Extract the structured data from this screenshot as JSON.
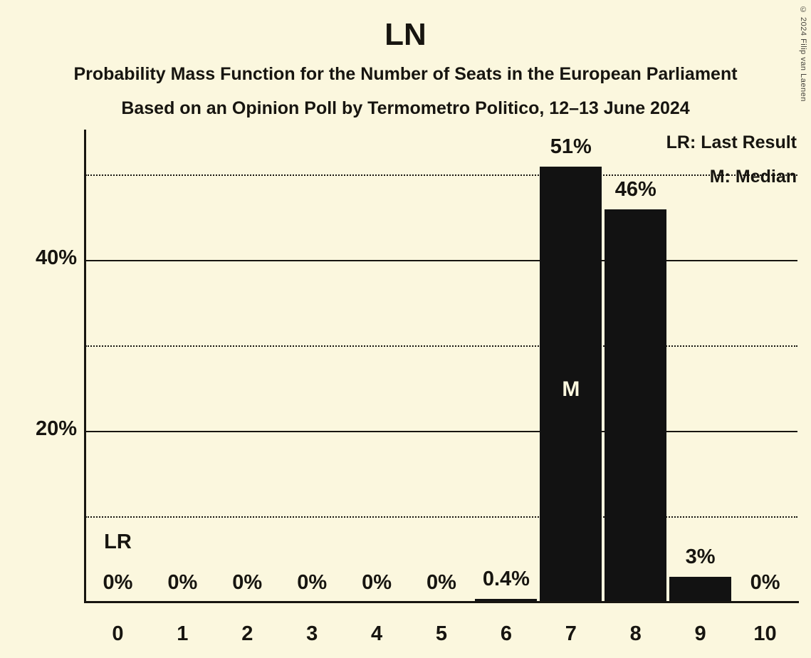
{
  "title": "LN",
  "subtitle": "Probability Mass Function for the Number of Seats in the European Parliament",
  "source_line": "Based on an Opinion Poll by Termometro Politico, 12–13 June 2024",
  "copyright": "© 2024 Filip van Laenen",
  "legend": {
    "last_result": "LR: Last Result",
    "median": "M: Median"
  },
  "colors": {
    "background": "#FBF7DE",
    "bar": "#121212",
    "text": "#171510",
    "median_text": "#FBF7DE"
  },
  "chart_data": {
    "type": "bar",
    "title": "LN",
    "subtitle": "Probability Mass Function for the Number of Seats in the European Parliament",
    "source": "Based on an Opinion Poll by Termometro Politico, 12–13 June 2024",
    "xlabel": "",
    "ylabel": "",
    "categories": [
      0,
      1,
      2,
      3,
      4,
      5,
      6,
      7,
      8,
      9,
      10
    ],
    "values": [
      0,
      0,
      0,
      0,
      0,
      0,
      0.4,
      51,
      46,
      3,
      0
    ],
    "bar_labels": [
      "0%",
      "0%",
      "0%",
      "0%",
      "0%",
      "0%",
      "0.4%",
      "51%",
      "46%",
      "3%",
      "0%"
    ],
    "ylim": [
      0,
      55.3
    ],
    "yticks": [
      {
        "value": 20,
        "label": "20%"
      },
      {
        "value": 40,
        "label": "40%"
      }
    ],
    "gridlines": {
      "solid_at": [
        20,
        40
      ],
      "dotted_at": [
        10,
        30,
        50
      ]
    },
    "grid": true,
    "legend_position": "top-right",
    "legend_entries": [
      "LR: Last Result",
      "M: Median"
    ],
    "annotations": {
      "last_result_seats": 0,
      "last_result_label": "LR",
      "median_seats": 7,
      "median_label": "M"
    }
  }
}
